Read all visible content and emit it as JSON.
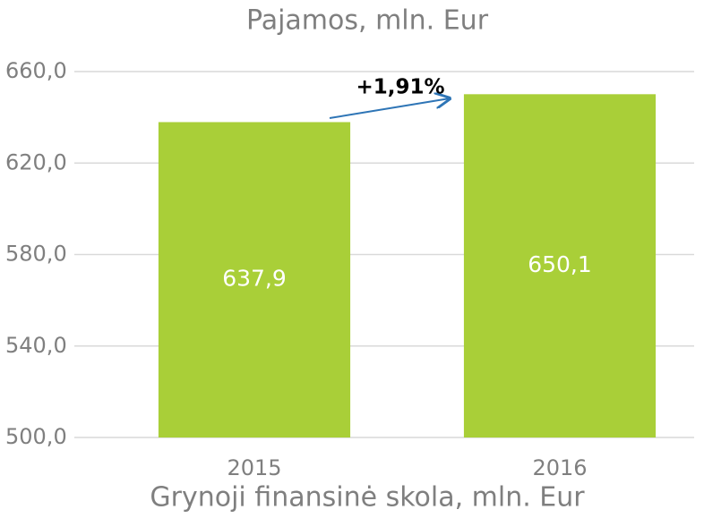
{
  "chart_data": {
    "type": "bar",
    "title": "Pajamos, mln. Eur",
    "x_label": "Grynoji finansinė skola, mln. Eur",
    "annotation": "+1,91%",
    "categories": [
      "2015",
      "2016"
    ],
    "values": [
      637.9,
      650.1
    ],
    "value_labels": [
      "637,9",
      "650,1"
    ],
    "color": "#a9cf38",
    "ylim": [
      500,
      660
    ],
    "yticks": [
      {
        "value": 500,
        "label": "500,0"
      },
      {
        "value": 540,
        "label": "540,0"
      },
      {
        "value": 580,
        "label": "580,0"
      },
      {
        "value": 620,
        "label": "620,0"
      },
      {
        "value": 660,
        "label": "660,0"
      }
    ],
    "grid": true
  }
}
